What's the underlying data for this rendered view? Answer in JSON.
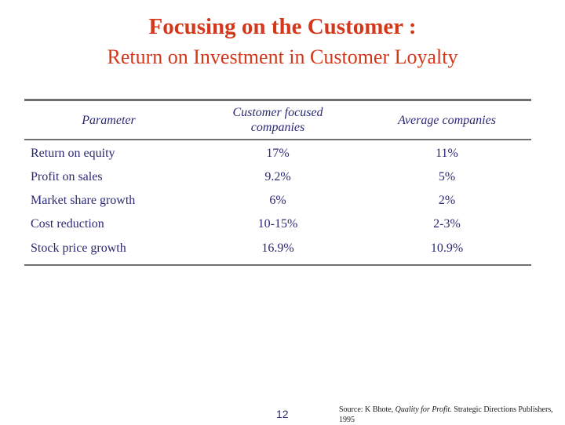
{
  "slide": {
    "title": "Focusing on the Customer :",
    "subtitle": "Return on Investment in Customer Loyalty",
    "page_number": "12"
  },
  "table": {
    "headers": {
      "parameter": "Parameter",
      "customer_focused_line1": "Customer focused",
      "customer_focused_line2": "companies",
      "average": "Average companies"
    },
    "rows": [
      {
        "parameter": "Return on equity",
        "customer_focused": "17%",
        "average": "11%"
      },
      {
        "parameter": "Profit on sales",
        "customer_focused": "9.2%",
        "average": "5%"
      },
      {
        "parameter": "Market share growth",
        "customer_focused": "6%",
        "average": "2%"
      },
      {
        "parameter": "Cost reduction",
        "customer_focused": "10-15%",
        "average": "2-3%"
      },
      {
        "parameter": "Stock price growth",
        "customer_focused": "16.9%",
        "average": "10.9%"
      }
    ]
  },
  "source": {
    "prefix": "Source:  K Bhote, ",
    "book": "Quality for Profit.",
    "suffix": "  Strategic Directions Publishers, 1995"
  },
  "colors": {
    "title": "#d4371a",
    "table_text": "#2a2a72",
    "rule": "#6f6f6f"
  }
}
